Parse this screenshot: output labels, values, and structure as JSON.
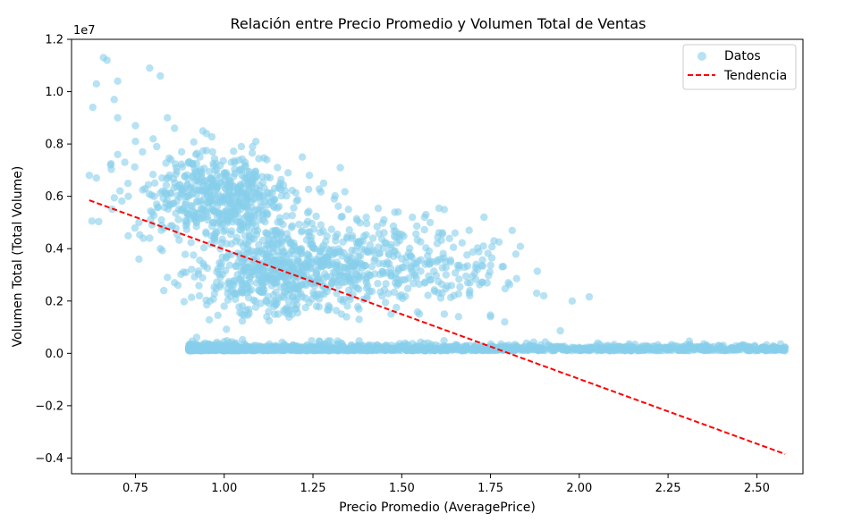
{
  "chart_data": {
    "type": "scatter",
    "title": "Relación entre Precio Promedio y Volumen Total de Ventas",
    "xlabel": "Precio Promedio (AveragePrice)",
    "ylabel": "Volumen Total (Total Volume)",
    "y_offset_label": "1e7",
    "y_scale": 10000000,
    "xlim": [
      0.57,
      2.63
    ],
    "ylim": [
      -0.46,
      1.2
    ],
    "x_ticks": [
      {
        "value": 0.75,
        "label": "0.75"
      },
      {
        "value": 1.0,
        "label": "1.00"
      },
      {
        "value": 1.25,
        "label": "1.25"
      },
      {
        "value": 1.5,
        "label": "1.50"
      },
      {
        "value": 1.75,
        "label": "1.75"
      },
      {
        "value": 2.0,
        "label": "2.00"
      },
      {
        "value": 2.25,
        "label": "2.25"
      },
      {
        "value": 2.5,
        "label": "2.50"
      }
    ],
    "y_ticks": [
      {
        "value": -0.4,
        "label": "−0.4"
      },
      {
        "value": -0.2,
        "label": "−0.2"
      },
      {
        "value": 0.0,
        "label": "0.0"
      },
      {
        "value": 0.2,
        "label": "0.2"
      },
      {
        "value": 0.4,
        "label": "0.4"
      },
      {
        "value": 0.6,
        "label": "0.6"
      },
      {
        "value": 0.8,
        "label": "0.8"
      },
      {
        "value": 1.0,
        "label": "1.0"
      },
      {
        "value": 1.2,
        "label": "1.2"
      }
    ],
    "grid": false,
    "legend_position": "top-right",
    "series": [
      {
        "name": "Datos",
        "kind": "scatter",
        "color": "#87CEEB",
        "points": [
          [
            0.63,
            0.94
          ],
          [
            0.64,
            1.03
          ],
          [
            0.66,
            1.13
          ],
          [
            0.67,
            1.12
          ],
          [
            0.7,
            1.04
          ],
          [
            0.69,
            0.97
          ],
          [
            0.7,
            0.9
          ],
          [
            0.79,
            1.09
          ],
          [
            0.82,
            1.06
          ],
          [
            0.84,
            0.9
          ],
          [
            0.86,
            0.86
          ],
          [
            0.94,
            0.85
          ],
          [
            0.95,
            0.84
          ],
          [
            1.08,
            0.79
          ],
          [
            1.22,
            0.75
          ],
          [
            0.75,
            0.87
          ],
          [
            0.8,
            0.82
          ],
          [
            0.81,
            0.79
          ],
          [
            0.62,
            0.68
          ],
          [
            0.64,
            0.67
          ],
          [
            0.68,
            0.72
          ],
          [
            0.7,
            0.76
          ],
          [
            0.72,
            0.73
          ],
          [
            0.75,
            0.81
          ],
          [
            0.77,
            0.77
          ],
          [
            0.73,
            0.6
          ],
          [
            0.76,
            0.5
          ],
          [
            0.76,
            0.36
          ],
          [
            0.79,
            0.44
          ],
          [
            0.82,
            0.4
          ],
          [
            0.84,
            0.29
          ],
          [
            0.83,
            0.24
          ],
          [
            0.86,
            0.27
          ],
          [
            0.87,
            0.26
          ],
          [
            0.93,
            0.22
          ],
          [
            0.96,
            0.2
          ],
          [
            1.0,
            0.18
          ],
          [
            1.05,
            0.15
          ],
          [
            1.12,
            0.14
          ],
          [
            1.2,
            0.17
          ],
          [
            1.26,
            0.18
          ],
          [
            1.33,
            0.15
          ],
          [
            1.38,
            0.13
          ],
          [
            1.47,
            0.15
          ],
          [
            1.55,
            0.15
          ],
          [
            1.62,
            0.15
          ],
          [
            1.66,
            0.14
          ],
          [
            1.75,
            0.14
          ],
          [
            1.79,
            0.12
          ],
          [
            1.88,
            0.23
          ],
          [
            1.9,
            0.22
          ],
          [
            1.98,
            0.2
          ],
          [
            1.8,
            0.27
          ],
          [
            1.76,
            0.43
          ],
          [
            1.73,
            0.41
          ],
          [
            1.69,
            0.47
          ],
          [
            1.65,
            0.46
          ],
          [
            1.58,
            0.5
          ],
          [
            1.53,
            0.52
          ],
          [
            1.49,
            0.54
          ],
          [
            1.45,
            0.51
          ],
          [
            1.4,
            0.52
          ],
          [
            1.35,
            0.55
          ],
          [
            1.31,
            0.59
          ],
          [
            1.28,
            0.65
          ],
          [
            1.24,
            0.68
          ],
          [
            1.18,
            0.69
          ],
          [
            1.15,
            0.71
          ],
          [
            1.12,
            0.74
          ],
          [
            0.98,
            0.68
          ],
          [
            1.02,
            0.73
          ],
          [
            0.92,
            0.76
          ],
          [
            0.9,
            0.73
          ],
          [
            0.88,
            0.77
          ],
          [
            0.85,
            0.74
          ]
        ],
        "clusters": [
          {
            "cx": 0.98,
            "cy": 0.59,
            "sx": 0.11,
            "sy": 0.085,
            "n": 520
          },
          {
            "cx": 1.14,
            "cy": 0.3,
            "sx": 0.1,
            "sy": 0.08,
            "n": 420
          },
          {
            "cx": 1.32,
            "cy": 0.37,
            "sx": 0.13,
            "sy": 0.09,
            "n": 320
          },
          {
            "cx": 1.58,
            "cy": 0.31,
            "sx": 0.12,
            "sy": 0.07,
            "n": 150
          }
        ],
        "baseline": {
          "x_from": 0.9,
          "x_to": 2.58,
          "y": 0.01,
          "spread": 0.01,
          "n": 1600
        }
      },
      {
        "name": "Tendencia",
        "kind": "line",
        "color": "#ff0000",
        "dash": true,
        "x": [
          0.62,
          2.58
        ],
        "y": [
          0.585,
          -0.385
        ]
      }
    ]
  }
}
